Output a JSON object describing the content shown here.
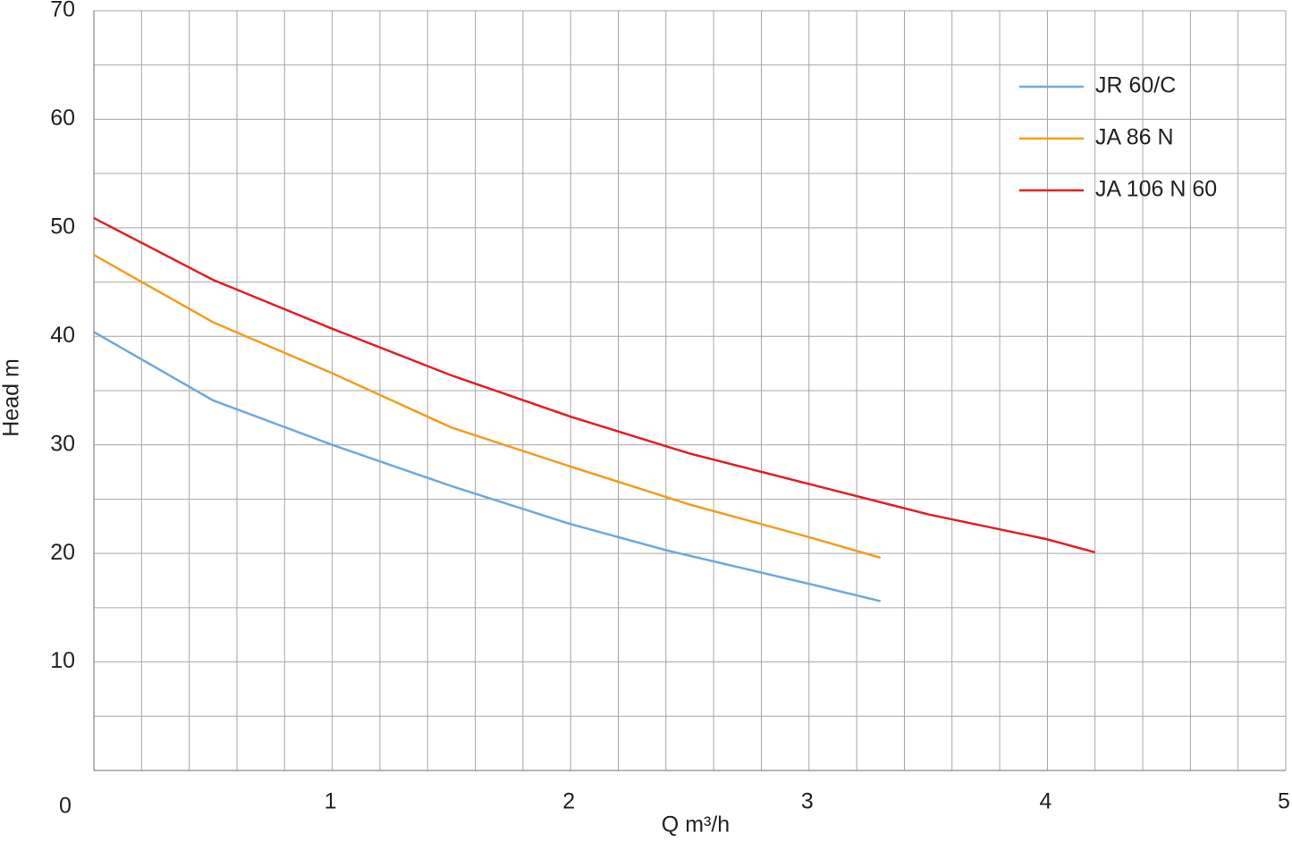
{
  "chart_data": {
    "type": "line",
    "x_label": "Q m³/h",
    "y_label": "Head m",
    "xlim": [
      0,
      5
    ],
    "ylim": [
      0,
      70
    ],
    "xticks": [
      0,
      1,
      2,
      3,
      4,
      5
    ],
    "yticks": [
      10,
      20,
      30,
      40,
      50,
      60,
      70
    ],
    "minor_xticks": [
      0.2,
      0.4,
      0.6,
      0.8,
      1.2,
      1.4,
      1.6,
      1.8,
      2.2,
      2.4,
      2.6,
      2.8,
      3.2,
      3.4,
      3.6,
      3.8,
      4.2,
      4.4,
      4.6,
      4.8
    ],
    "minor_yticks": [
      5,
      15,
      25,
      35,
      45,
      55,
      65
    ],
    "grid": true,
    "legend": "upper right",
    "series": [
      {
        "name": "JR 60/C",
        "color": "#6fa8dc",
        "x": [
          0,
          0.5,
          1,
          1.5,
          2,
          2.4,
          3,
          3.3
        ],
        "values": [
          40.4,
          34.1,
          30,
          26.2,
          22.7,
          20.3,
          17.2,
          15.6
        ]
      },
      {
        "name": "JA 86 N",
        "color": "#f39c1f",
        "x": [
          0,
          0.5,
          1,
          1.5,
          2,
          2.5,
          3,
          3.3
        ],
        "values": [
          47.5,
          41.3,
          36.6,
          31.6,
          28,
          24.5,
          21.5,
          19.6
        ]
      },
      {
        "name": "JA 106 N 60",
        "color": "#e31e24",
        "x": [
          0,
          0.5,
          1,
          1.5,
          2,
          2.5,
          3,
          3.5,
          4,
          4.2
        ],
        "values": [
          50.9,
          45.2,
          40.7,
          36.4,
          32.6,
          29.2,
          26.4,
          23.6,
          21.3,
          20.1
        ]
      }
    ]
  }
}
